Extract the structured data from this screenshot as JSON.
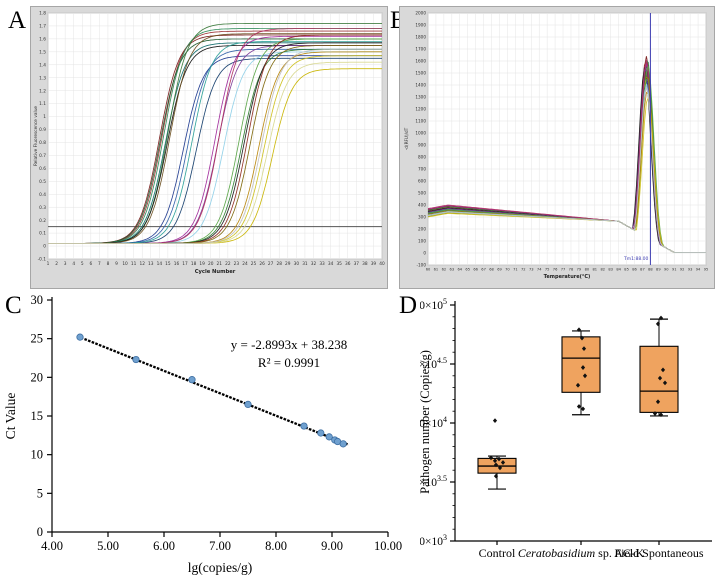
{
  "figure": {
    "panels": [
      {
        "label": "A"
      },
      {
        "label": "B"
      },
      {
        "label": "C"
      },
      {
        "label": "D"
      }
    ]
  },
  "chart_data": [
    {
      "id": "A",
      "type": "line",
      "subtype": "qpcr-amplification",
      "xlabel": "Cycle Number",
      "ylabel": "Relative Fluorescence value",
      "xlim": [
        1,
        40
      ],
      "x_tick_step": 1,
      "ylim": [
        -0.1,
        1.8
      ],
      "y_tick_step": 0.1,
      "grid": true,
      "threshold_line": 0.15,
      "series": [
        {
          "color": "#7B1F1F",
          "midpoint": 14.0,
          "plateau": 1.63
        },
        {
          "color": "#9B3030",
          "midpoint": 14.3,
          "plateau": 1.66
        },
        {
          "color": "#1E5B2E",
          "midpoint": 14.1,
          "plateau": 1.6
        },
        {
          "color": "#2E8B57",
          "midpoint": 14.5,
          "plateau": 1.68
        },
        {
          "color": "#0F6B6B",
          "midpoint": 14.7,
          "plateau": 1.57
        },
        {
          "color": "#3B7A3B",
          "midpoint": 15.0,
          "plateau": 1.72
        },
        {
          "color": "#111111",
          "midpoint": 14.9,
          "plateau": 1.55
        },
        {
          "color": "#6B4F1F",
          "midpoint": 15.2,
          "plateau": 1.64
        },
        {
          "color": "#1F3A8F",
          "midpoint": 16.8,
          "plateau": 1.47
        },
        {
          "color": "#2F5FA8",
          "midpoint": 17.3,
          "plateau": 1.52
        },
        {
          "color": "#123C6B",
          "midpoint": 18.3,
          "plateau": 1.45
        },
        {
          "color": "#2AA198",
          "midpoint": 17.8,
          "plateau": 1.58
        },
        {
          "color": "#A0289B",
          "midpoint": 20.5,
          "plateau": 1.62
        },
        {
          "color": "#7D3C98",
          "midpoint": 20.8,
          "plateau": 1.55
        },
        {
          "color": "#8FD0E8",
          "midpoint": 21.5,
          "plateau": 1.5
        },
        {
          "color": "#B03060",
          "midpoint": 21.0,
          "plateau": 1.68
        },
        {
          "color": "#58A546",
          "midpoint": 23.3,
          "plateau": 1.6
        },
        {
          "color": "#2E7D32",
          "midpoint": 23.6,
          "plateau": 1.52
        },
        {
          "color": "#1A1A1A",
          "midpoint": 23.9,
          "plateau": 1.57
        },
        {
          "color": "#8F2B21",
          "midpoint": 24.3,
          "plateau": 1.63
        },
        {
          "color": "#7D6608",
          "midpoint": 24.6,
          "plateau": 1.55
        },
        {
          "color": "#B8860B",
          "midpoint": 25.6,
          "plateau": 1.5
        },
        {
          "color": "#CDC11B",
          "midpoint": 26.2,
          "plateau": 1.47
        },
        {
          "color": "#C8B400",
          "midpoint": 27.2,
          "plateau": 1.37
        },
        {
          "color": "#D8D890",
          "midpoint": 26.6,
          "plateau": 1.42
        },
        {
          "color": "#BFBFBF",
          "midpoint": 25.9,
          "plateau": 1.52
        }
      ]
    },
    {
      "id": "B",
      "type": "line",
      "subtype": "melt-curve",
      "xlabel": "Temperature(°C)",
      "ylabel": "-d(RFU)/dT",
      "xlim": [
        60,
        95
      ],
      "x_tick_step": 1,
      "ylim": [
        -100,
        2000
      ],
      "y_tick_step": 100,
      "grid": true,
      "tm_marker": {
        "x": 88,
        "label": "Tm1:88.00",
        "color": "#3B3BB0"
      },
      "series": [
        {
          "color": "#7B1F1F",
          "baseline": 390,
          "peak": 1640,
          "center": 87.5
        },
        {
          "color": "#9B3030",
          "baseline": 380,
          "peak": 1600,
          "center": 87.4
        },
        {
          "color": "#1E5B2E",
          "baseline": 370,
          "peak": 1570,
          "center": 87.5
        },
        {
          "color": "#2E8B57",
          "baseline": 365,
          "peak": 1620,
          "center": 87.6
        },
        {
          "color": "#0F6B6B",
          "baseline": 360,
          "peak": 1500,
          "center": 87.5
        },
        {
          "color": "#3B7A3B",
          "baseline": 385,
          "peak": 1590,
          "center": 87.6
        },
        {
          "color": "#111111",
          "baseline": 375,
          "peak": 1550,
          "center": 87.3
        },
        {
          "color": "#6B4F1F",
          "baseline": 355,
          "peak": 1530,
          "center": 87.5
        },
        {
          "color": "#1F3A8F",
          "baseline": 350,
          "peak": 1440,
          "center": 87.6
        },
        {
          "color": "#2F5FA8",
          "baseline": 345,
          "peak": 1420,
          "center": 87.5
        },
        {
          "color": "#2AA198",
          "baseline": 340,
          "peak": 1460,
          "center": 87.6
        },
        {
          "color": "#A0289B",
          "baseline": 395,
          "peak": 1580,
          "center": 87.5
        },
        {
          "color": "#7D3C98",
          "baseline": 370,
          "peak": 1540,
          "center": 87.4
        },
        {
          "color": "#B03060",
          "baseline": 400,
          "peak": 1610,
          "center": 87.5
        },
        {
          "color": "#58A546",
          "baseline": 360,
          "peak": 1560,
          "center": 87.7
        },
        {
          "color": "#8F8F00",
          "baseline": 335,
          "peak": 1480,
          "center": 87.6
        },
        {
          "color": "#CDC11B",
          "baseline": 330,
          "peak": 1300,
          "center": 87.7
        },
        {
          "color": "#B8860B",
          "baseline": 350,
          "peak": 1350,
          "center": 87.6
        },
        {
          "color": "#8FD0E8",
          "baseline": 345,
          "peak": 1410,
          "center": 87.5
        },
        {
          "color": "#BFBFBF",
          "baseline": 340,
          "peak": 1380,
          "center": 87.5
        }
      ]
    },
    {
      "id": "C",
      "type": "scatter",
      "subtype": "standard-curve",
      "xlabel": "lg(copies/g)",
      "ylabel": "Ct Value",
      "xlim": [
        4,
        10
      ],
      "x_ticks": [
        "4.00",
        "5.00",
        "6.00",
        "7.00",
        "8.00",
        "9.00",
        "10.00"
      ],
      "ylim": [
        0,
        30
      ],
      "y_ticks": [
        0,
        5,
        10,
        15,
        20,
        25,
        30
      ],
      "equation": "y = -2.8993x + 38.238",
      "r_squared": "R² = 0.9991",
      "point_color": "#6FA0CF",
      "point_edge": "#3E6FA3",
      "points": [
        [
          4.5,
          25.2
        ],
        [
          5.5,
          22.3
        ],
        [
          6.5,
          19.7
        ],
        [
          7.5,
          16.5
        ],
        [
          8.5,
          13.7
        ],
        [
          8.8,
          12.8
        ],
        [
          8.95,
          12.3
        ],
        [
          9.05,
          11.9
        ],
        [
          9.1,
          11.7
        ],
        [
          9.2,
          11.4
        ]
      ],
      "trendline": {
        "x1": 4.45,
        "y1": 25.33,
        "x2": 9.3,
        "y2": 11.27,
        "style": "dashed",
        "color": "#000000"
      }
    },
    {
      "id": "D",
      "type": "box",
      "subtype": "pathogen-boxplot",
      "ylabel": "Pathogen number (Copies/g)",
      "y_scale": "log-half-decade",
      "y_tick_base": "3.0×10",
      "y_ticks": [
        {
          "exp": 5,
          "sup": "5"
        },
        {
          "exp": 4.5,
          "sup": "4.5"
        },
        {
          "exp": 4,
          "sup": "4"
        },
        {
          "exp": 3.5,
          "sup": "3.5"
        },
        {
          "exp": 3,
          "sup": "3"
        }
      ],
      "ylim_exp": [
        3,
        5
      ],
      "box_fill": "#EFA35F",
      "box_edge": "#000000",
      "categories": [
        {
          "italic": "",
          "text": "Control"
        },
        {
          "italic": "Ceratobasidium",
          "text": " sp. AG-K"
        },
        {
          "italic": "",
          "text": "Field Spontaneous"
        }
      ],
      "boxes": [
        {
          "category": "Control",
          "q1": 3.575,
          "median": 3.635,
          "q3": 3.7,
          "whisker_low": 3.44,
          "whisker_high": 3.72,
          "outliers": [
            [
              -2,
              4.02
            ]
          ],
          "points": [
            [
              -6,
              3.705
            ],
            [
              2,
              3.695
            ],
            [
              -2,
              3.68
            ],
            [
              6,
              3.665
            ],
            [
              -1,
              3.645
            ],
            [
              3,
              3.62
            ],
            [
              -1,
              3.55
            ]
          ]
        },
        {
          "category": "Ceratobasidium sp. AG-K",
          "q1": 4.26,
          "median": 4.55,
          "q3": 4.73,
          "whisker_low": 4.07,
          "whisker_high": 4.78,
          "outliers": [],
          "points": [
            [
              -2,
              4.79
            ],
            [
              1,
              4.72
            ],
            [
              3,
              4.63
            ],
            [
              2,
              4.47
            ],
            [
              4,
              4.4
            ],
            [
              -3,
              4.32
            ],
            [
              -2,
              4.14
            ],
            [
              2,
              4.12
            ]
          ]
        },
        {
          "category": "Field Spontaneous",
          "q1": 4.09,
          "median": 4.27,
          "q3": 4.65,
          "whisker_low": 4.06,
          "whisker_high": 4.88,
          "outliers": [],
          "points": [
            [
              2,
              4.89
            ],
            [
              -1,
              4.84
            ],
            [
              4,
              4.45
            ],
            [
              1,
              4.38
            ],
            [
              6,
              4.34
            ],
            [
              -1,
              4.18
            ],
            [
              -4,
              4.08
            ],
            [
              2,
              4.07
            ]
          ]
        }
      ]
    }
  ]
}
